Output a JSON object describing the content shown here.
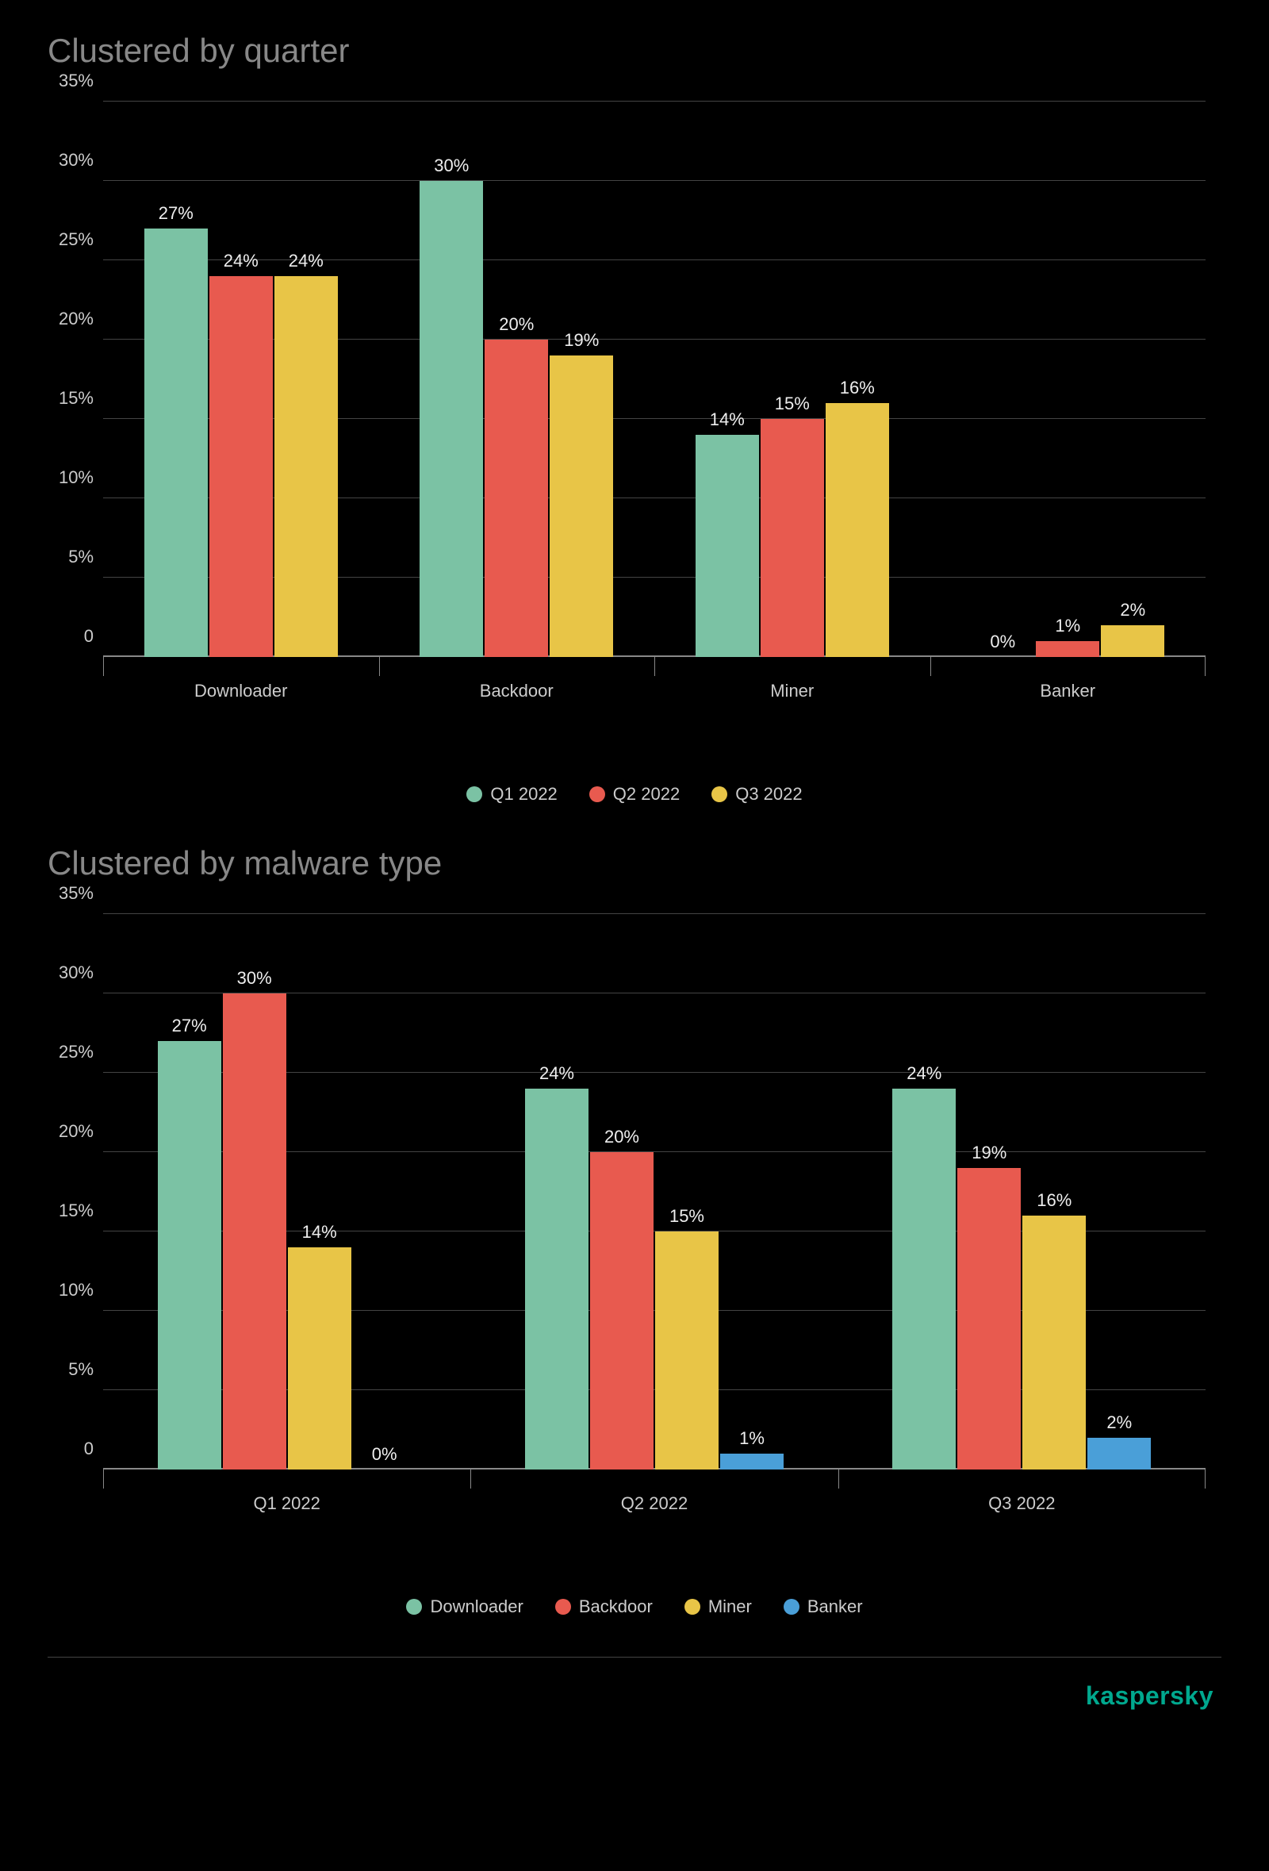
{
  "colors": {
    "green": "#7bc2a4",
    "red": "#e85a4f",
    "yellow": "#e8c547",
    "blue": "#4a9fd8",
    "grid": "#444444",
    "text": "#cccccc",
    "title": "#888888",
    "brand": "#00a88e",
    "background": "#000000"
  },
  "y_axis": {
    "max": 35,
    "step": 5,
    "ticks": [
      "0",
      "5%",
      "10%",
      "15%",
      "20%",
      "25%",
      "30%",
      "35%"
    ]
  },
  "chart1": {
    "title": "Clustered by quarter",
    "categories": [
      "Downloader",
      "Backdoor",
      "Miner",
      "Banker"
    ],
    "series": [
      {
        "name": "Q1 2022",
        "color_key": "green",
        "values": [
          27,
          30,
          14,
          0
        ]
      },
      {
        "name": "Q2 2022",
        "color_key": "red",
        "values": [
          24,
          20,
          15,
          1
        ]
      },
      {
        "name": "Q3 2022",
        "color_key": "yellow",
        "values": [
          24,
          19,
          16,
          2
        ]
      }
    ]
  },
  "chart2": {
    "title": "Clustered by malware type",
    "categories": [
      "Q1 2022",
      "Q2 2022",
      "Q3 2022"
    ],
    "series": [
      {
        "name": "Downloader",
        "color_key": "green",
        "values": [
          27,
          24,
          24
        ]
      },
      {
        "name": "Backdoor",
        "color_key": "red",
        "values": [
          30,
          20,
          19
        ]
      },
      {
        "name": "Miner",
        "color_key": "yellow",
        "values": [
          14,
          15,
          16
        ]
      },
      {
        "name": "Banker",
        "color_key": "blue",
        "values": [
          0,
          1,
          2
        ]
      }
    ]
  },
  "brand": "kaspersky"
}
